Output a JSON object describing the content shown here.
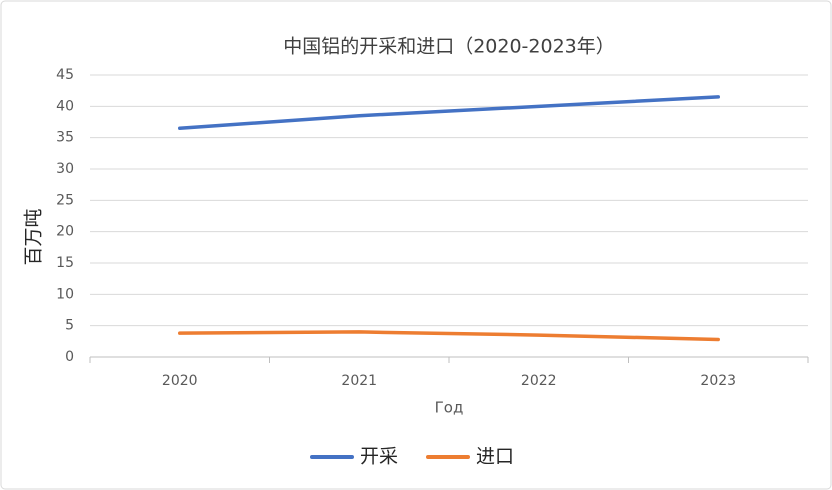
{
  "chart_data": {
    "type": "line",
    "title": "中国铝的开采和进口（2020-2023年）",
    "x_label": "Год",
    "y_label": "百万吨",
    "categories": [
      "2020",
      "2021",
      "2022",
      "2023"
    ],
    "series": [
      {
        "name": "开采",
        "color": "#4472c4",
        "values": [
          36.5,
          38.5,
          40,
          41.5
        ]
      },
      {
        "name": "进口",
        "color": "#ed7d31",
        "values": [
          3.8,
          4.0,
          3.5,
          2.8
        ]
      }
    ],
    "ylim": [
      0,
      45
    ],
    "yticks": [
      0,
      5,
      10,
      15,
      20,
      25,
      30,
      35,
      40,
      45
    ],
    "grid": true,
    "legend": "bottom"
  }
}
